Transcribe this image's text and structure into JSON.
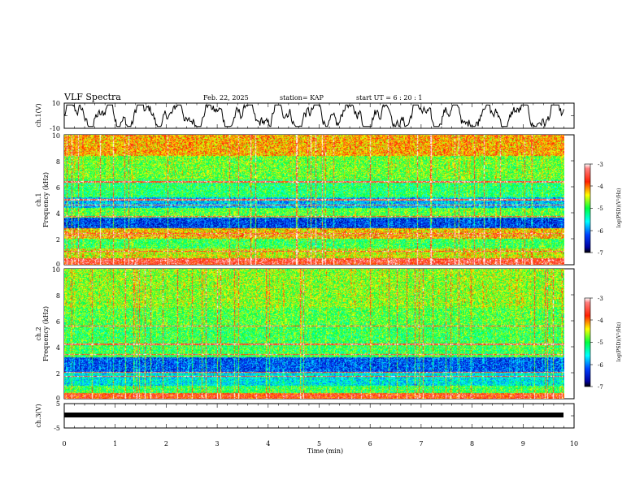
{
  "header": {
    "title": "VLF Spectra",
    "date": "Feb. 22, 2025",
    "station": "station= KAP",
    "start": "start  UT =   6  : 20 : 1"
  },
  "chart_data": [
    {
      "type": "line",
      "panel": "ch1-voltage",
      "ylabel": "ch.1(V)",
      "ylim": [
        -10,
        10
      ],
      "y_ticks": [
        "10",
        "-10"
      ],
      "xlim": [
        0,
        10
      ],
      "x_end": 9.8,
      "description_values": "noisy waveform oscillating roughly between -8 and 8 V"
    },
    {
      "type": "heatmap",
      "panel": "ch1-spectrogram",
      "ylabel_top": "ch.1",
      "ylabel": "Frequency (kHz)",
      "ylim": [
        0,
        10
      ],
      "y_ticks": [
        "10",
        "8",
        "6",
        "4",
        "2",
        "0"
      ],
      "xlim": [
        0,
        10
      ],
      "colorbar": {
        "label": "log(PSD)(V²/Hz)",
        "range": [
          -7,
          -3
        ],
        "ticks": [
          "-3",
          "-4",
          "-5",
          "-6",
          "-7"
        ]
      },
      "bands_kHz": [
        {
          "lo": 0.0,
          "hi": 0.5,
          "level": -3.6
        },
        {
          "lo": 0.5,
          "hi": 1.2,
          "level": -4.5
        },
        {
          "lo": 1.2,
          "hi": 2.0,
          "level": -5.0
        },
        {
          "lo": 2.0,
          "hi": 2.8,
          "level": -4.3
        },
        {
          "lo": 2.8,
          "hi": 3.6,
          "level": -6.3
        },
        {
          "lo": 3.6,
          "hi": 4.4,
          "level": -4.9
        },
        {
          "lo": 4.4,
          "hi": 5.2,
          "level": -5.8
        },
        {
          "lo": 5.2,
          "hi": 6.6,
          "level": -5.1
        },
        {
          "lo": 6.6,
          "hi": 8.4,
          "level": -4.8
        },
        {
          "lo": 8.4,
          "hi": 10.0,
          "level": -4.2
        }
      ],
      "lines_kHz": [
        0.3,
        1.0,
        2.2,
        2.4,
        3.7,
        4.6,
        5.0,
        6.4
      ]
    },
    {
      "type": "heatmap",
      "panel": "ch2-spectrogram",
      "ylabel_top": "ch.2",
      "ylabel": "Frequency (kHz)",
      "ylim": [
        0,
        10
      ],
      "y_ticks": [
        "10",
        "8",
        "6",
        "4",
        "2",
        "0"
      ],
      "xlim": [
        0,
        10
      ],
      "colorbar": {
        "label": "log(PSD)(V²/Hz)",
        "range": [
          -7,
          -3
        ],
        "ticks": [
          "-3",
          "-4",
          "-5",
          "-6",
          "-7"
        ]
      },
      "bands_kHz": [
        {
          "lo": 0.0,
          "hi": 0.4,
          "level": -3.8
        },
        {
          "lo": 0.4,
          "hi": 1.0,
          "level": -5.0
        },
        {
          "lo": 1.0,
          "hi": 2.0,
          "level": -5.6
        },
        {
          "lo": 2.0,
          "hi": 3.2,
          "level": -6.2
        },
        {
          "lo": 3.2,
          "hi": 4.0,
          "level": -5.0
        },
        {
          "lo": 4.0,
          "hi": 5.5,
          "level": -5.0
        },
        {
          "lo": 5.5,
          "hi": 7.0,
          "level": -4.9
        },
        {
          "lo": 7.0,
          "hi": 10.0,
          "level": -4.7
        }
      ],
      "lines_kHz": [
        0.2,
        1.7,
        2.0,
        3.4,
        4.2,
        5.6
      ]
    },
    {
      "type": "line",
      "panel": "ch3-voltage",
      "ylabel": "ch.3(V)",
      "ylim": [
        -5,
        5
      ],
      "y_ticks": [
        "5",
        "-5"
      ],
      "xlim": [
        0,
        10
      ],
      "x_end": 9.8,
      "constant_value": -1,
      "xlabel": "Time (min)",
      "x_ticks": [
        "0",
        "1",
        "2",
        "3",
        "4",
        "5",
        "6",
        "7",
        "8",
        "9",
        "10"
      ]
    }
  ]
}
